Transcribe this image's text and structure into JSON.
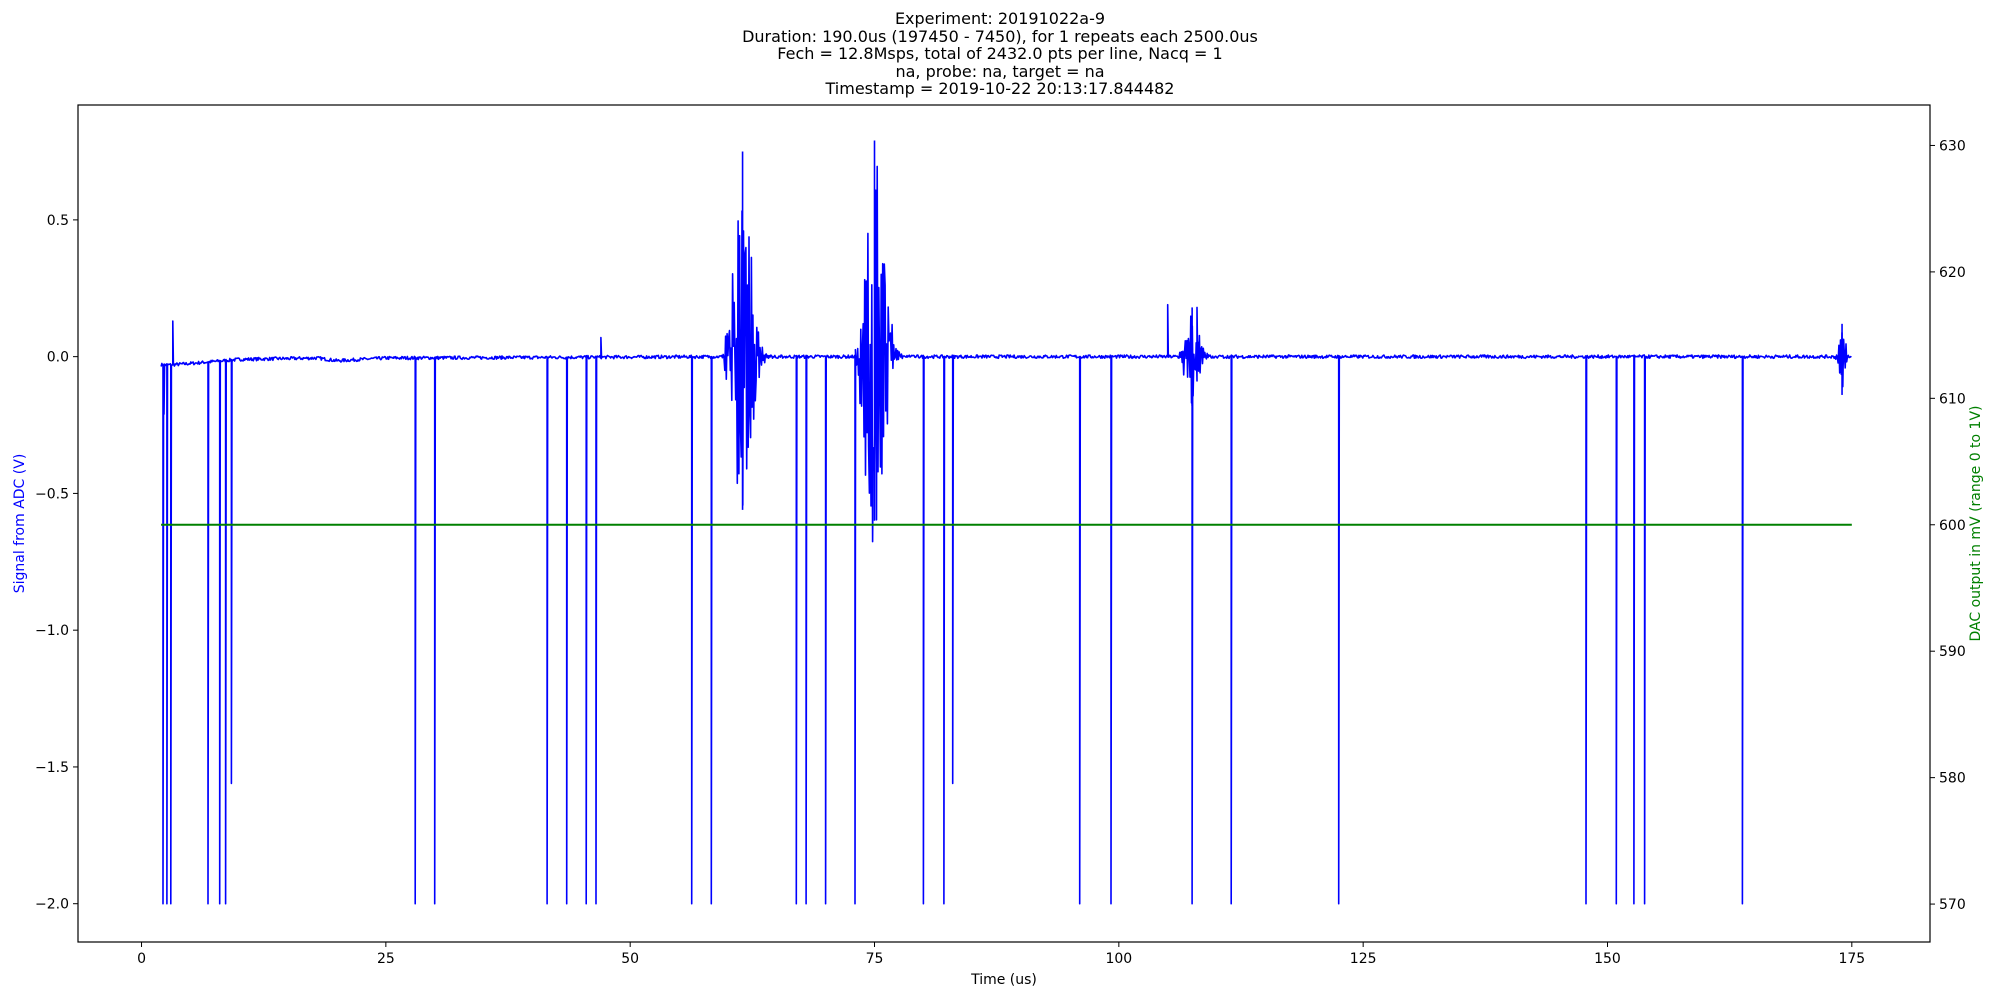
{
  "chart_data": {
    "type": "line",
    "title_lines": [
      "Experiment: 20191022a-9",
      "Duration: 190.0us (197450 - 7450), for 1 repeats each 2500.0us",
      "Fech = 12.8Msps, total of 2432.0 pts per line, Nacq = 1",
      "na, probe: na, target = na",
      "Timestamp = 2019-10-22 20:13:17.844482"
    ],
    "xlabel": "Time (us)",
    "ylabel_left": "Signal from ADC (V)",
    "ylabel_right": "DAC output in mV (range 0 to 1V)",
    "xlim": [
      -6.5,
      183
    ],
    "ylim_left": [
      -2.14,
      0.92
    ],
    "ylim_right": [
      567,
      633.2
    ],
    "x_ticks": [
      0,
      25,
      50,
      75,
      100,
      125,
      150,
      175
    ],
    "x_tick_labels": [
      "0",
      "25",
      "50",
      "75",
      "100",
      "125",
      "150",
      "175"
    ],
    "y_left_ticks": [
      -2.0,
      -1.5,
      -1.0,
      -0.5,
      0.0,
      0.5
    ],
    "y_left_tick_labels": [
      "−2.0",
      "−1.5",
      "−1.0",
      "−0.5",
      "0.0",
      "0.5"
    ],
    "y_right_ticks": [
      570,
      580,
      590,
      600,
      610,
      620,
      630
    ],
    "y_right_tick_labels": [
      "570",
      "580",
      "590",
      "600",
      "610",
      "620",
      "630"
    ],
    "grid": false,
    "series": [
      {
        "axis": "left",
        "color": "#0000ff",
        "x_range": [
          2.0,
          175.0
        ],
        "baseline": [
          [
            3.0,
            -0.03
          ],
          [
            5.0,
            -0.025
          ],
          [
            10.0,
            -0.01
          ],
          [
            18.0,
            -0.005
          ],
          [
            20.0,
            -0.015
          ],
          [
            25.0,
            -0.005
          ],
          [
            60.0,
            0.0
          ],
          [
            100.0,
            0.0
          ],
          [
            175.0,
            0.0
          ]
        ],
        "dropouts": [
          [
            2.2,
            -2.0
          ],
          [
            2.6,
            -2.0
          ],
          [
            3.0,
            -2.0
          ],
          [
            6.8,
            -2.0
          ],
          [
            8.0,
            -2.0
          ],
          [
            8.6,
            -2.0
          ],
          [
            9.2,
            -1.56
          ],
          [
            28.0,
            -2.0
          ],
          [
            30.0,
            -2.0
          ],
          [
            41.5,
            -2.0
          ],
          [
            43.5,
            -2.0
          ],
          [
            45.5,
            -2.0
          ],
          [
            46.5,
            -2.0
          ],
          [
            56.3,
            -2.0
          ],
          [
            58.3,
            -2.0
          ],
          [
            67.0,
            -2.0
          ],
          [
            68.0,
            -2.0
          ],
          [
            70.0,
            -2.0
          ],
          [
            73.0,
            -2.0
          ],
          [
            80.0,
            -2.0
          ],
          [
            82.1,
            -2.0
          ],
          [
            83.0,
            -1.56
          ],
          [
            96.0,
            -2.0
          ],
          [
            99.2,
            -2.0
          ],
          [
            107.5,
            -2.0
          ],
          [
            111.5,
            -2.0
          ],
          [
            122.5,
            -2.0
          ],
          [
            147.8,
            -2.0
          ],
          [
            150.9,
            -2.0
          ],
          [
            152.7,
            -2.0
          ],
          [
            153.8,
            -2.0
          ],
          [
            163.8,
            -2.0
          ]
        ],
        "spikes": [
          [
            2.3,
            -0.21
          ],
          [
            3.2,
            0.13
          ],
          [
            47.0,
            0.07
          ],
          [
            105.0,
            0.19
          ],
          [
            108.0,
            0.18
          ]
        ],
        "bursts": [
          {
            "center": 61.5,
            "start": 59.5,
            "end": 65.5,
            "peak_pos": 0.75,
            "peak_neg": -0.56
          },
          {
            "center": 75.0,
            "start": 73.0,
            "end": 79.5,
            "peak_pos": 0.79,
            "peak_neg": -0.6
          },
          {
            "center": 107.5,
            "start": 106.0,
            "end": 110.5,
            "peak_pos": 0.18,
            "peak_neg": -0.18
          },
          {
            "center": 174.0,
            "start": 173.0,
            "end": 175.0,
            "peak_pos": 0.12,
            "peak_neg": -0.14
          }
        ]
      },
      {
        "axis": "right",
        "color": "#008000",
        "x": [
          2.0,
          175.0
        ],
        "y": [
          600,
          600
        ]
      }
    ]
  }
}
